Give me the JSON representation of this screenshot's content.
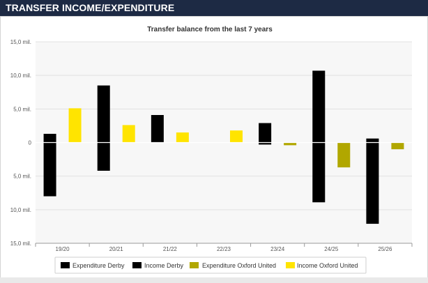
{
  "header": {
    "title": "TRANSFER INCOME/EXPENDITURE"
  },
  "chart_data": {
    "type": "bar",
    "title": "Transfer balance from the last 7 years",
    "categories": [
      "19/20",
      "20/21",
      "21/22",
      "22/23",
      "23/24",
      "24/25",
      "25/26"
    ],
    "y_ticks": [
      "15,0 mil.",
      "10,0 mil.",
      "5,0 mil.",
      "0",
      "5,0 mil.",
      "10,0 mil.",
      "15,0 mil."
    ],
    "ylim": [
      -15,
      15
    ],
    "grid": true,
    "legend_position": "bottom",
    "series": [
      {
        "name": "Expenditure Derby",
        "color": "#000000",
        "values": [
          -8.0,
          -4.2,
          0,
          0,
          -0.3,
          -8.9,
          -12.1
        ]
      },
      {
        "name": "Income Derby",
        "color": "#000000",
        "values": [
          1.3,
          8.5,
          4.1,
          0,
          2.9,
          10.7,
          0.6
        ]
      },
      {
        "name": "Expenditure Oxford United",
        "color": "#b1a700",
        "values": [
          0,
          0,
          0,
          0,
          -0.4,
          -3.7,
          -1.0
        ]
      },
      {
        "name": "Income Oxford United",
        "color": "#ffe400",
        "values": [
          5.1,
          2.6,
          1.5,
          1.8,
          0,
          0,
          0
        ]
      }
    ]
  }
}
